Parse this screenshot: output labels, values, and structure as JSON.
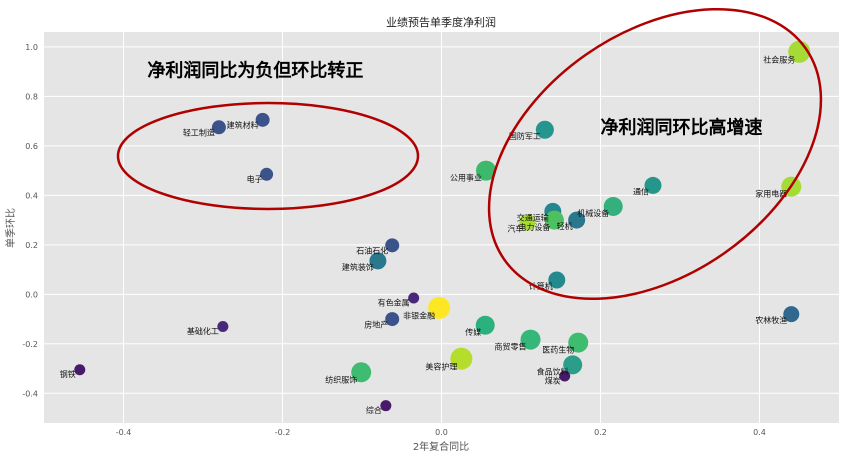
{
  "chart_data": {
    "type": "scatter",
    "title": "业绩预告单季度净利润",
    "xlabel": "2年复合同比",
    "ylabel": "单季环比",
    "xlim": [
      -0.5,
      0.5
    ],
    "ylim": [
      -0.52,
      1.06
    ],
    "xticks": [
      "-0.4",
      "-0.2",
      "0.0",
      "0.2",
      "0.4"
    ],
    "xtick_values": [
      -0.4,
      -0.2,
      0.0,
      0.2,
      0.4
    ],
    "yticks": [
      "-0.4",
      "-0.2",
      "0.0",
      "0.2",
      "0.4",
      "0.6",
      "0.8",
      "1.0"
    ],
    "ytick_values": [
      -0.4,
      -0.2,
      0.0,
      0.2,
      0.4,
      0.6,
      0.8,
      1.0
    ],
    "grid": true,
    "points": [
      {
        "label": "社会服务",
        "x": 0.45,
        "y": 0.98,
        "color": "#a6db35",
        "size": 11
      },
      {
        "label": "轻工制造",
        "x": -0.28,
        "y": 0.675,
        "color": "#3b528b",
        "size": 7
      },
      {
        "label": "建筑材料",
        "x": -0.225,
        "y": 0.705,
        "color": "#3b528b",
        "size": 7
      },
      {
        "label": "国防军工",
        "x": 0.13,
        "y": 0.665,
        "color": "#26958d",
        "size": 9
      },
      {
        "label": "电子",
        "x": -0.22,
        "y": 0.485,
        "color": "#3b528b",
        "size": 6.5
      },
      {
        "label": "公用事业",
        "x": 0.056,
        "y": 0.5,
        "color": "#3db96b",
        "size": 10
      },
      {
        "label": "通信",
        "x": 0.266,
        "y": 0.44,
        "color": "#25968b",
        "size": 8.5
      },
      {
        "label": "家用电器",
        "x": 0.44,
        "y": 0.435,
        "color": "#a4db36",
        "size": 10
      },
      {
        "label": "机械设备",
        "x": 0.216,
        "y": 0.355,
        "color": "#33b07b",
        "size": 9.5
      },
      {
        "label": "交通运输",
        "x": 0.14,
        "y": 0.335,
        "color": "#26868f",
        "size": 8.5
      },
      {
        "label": "电力设备",
        "x": 0.142,
        "y": 0.3,
        "color": "#4dc05f",
        "size": 9.5
      },
      {
        "label": "汽车",
        "x": 0.108,
        "y": 0.29,
        "color": "#a6db35",
        "size": 8
      },
      {
        "label": "轻机",
        "x": 0.17,
        "y": 0.3,
        "color": "#2a788e",
        "size": 8.5
      },
      {
        "label": "石油石化",
        "x": -0.062,
        "y": 0.198,
        "color": "#3b528b",
        "size": 7
      },
      {
        "label": "建筑装饰",
        "x": -0.08,
        "y": 0.135,
        "color": "#2a788e",
        "size": 8.5
      },
      {
        "label": "计算机",
        "x": 0.145,
        "y": 0.058,
        "color": "#238a8d",
        "size": 8.5
      },
      {
        "label": "有色金属",
        "x": -0.035,
        "y": -0.015,
        "color": "#482878",
        "size": 5.5
      },
      {
        "label": "非银金融",
        "x": -0.003,
        "y": -0.055,
        "color": "#fde725",
        "size": 11
      },
      {
        "label": "房地产",
        "x": -0.062,
        "y": -0.1,
        "color": "#3b528b",
        "size": 7
      },
      {
        "label": "基础化工",
        "x": -0.275,
        "y": -0.13,
        "color": "#482878",
        "size": 5.5
      },
      {
        "label": "传媒",
        "x": 0.055,
        "y": -0.125,
        "color": "#2bb17e",
        "size": 9.5
      },
      {
        "label": "商贸零售",
        "x": 0.112,
        "y": -0.183,
        "color": "#35b779",
        "size": 10
      },
      {
        "label": "医药生物",
        "x": 0.172,
        "y": -0.195,
        "color": "#3ebc6f",
        "size": 10
      },
      {
        "label": "美容护理",
        "x": 0.025,
        "y": -0.26,
        "color": "#b4dd2c",
        "size": 11
      },
      {
        "label": "食品饮料",
        "x": 0.165,
        "y": -0.285,
        "color": "#2a9e89",
        "size": 9.5
      },
      {
        "label": "煤炭",
        "x": 0.155,
        "y": -0.33,
        "color": "#481a6c",
        "size": 5.5
      },
      {
        "label": "纺织服饰",
        "x": -0.101,
        "y": -0.315,
        "color": "#3fbc72",
        "size": 10
      },
      {
        "label": "钢铁",
        "x": -0.455,
        "y": -0.305,
        "color": "#481a6c",
        "size": 5.5
      },
      {
        "label": "综合",
        "x": -0.07,
        "y": -0.45,
        "color": "#481a6c",
        "size": 5.5
      },
      {
        "label": "农林牧渔",
        "x": 0.44,
        "y": -0.08,
        "color": "#31688e",
        "size": 8
      }
    ],
    "annotations": [
      {
        "text": "净利润同比为负但环比转正",
        "x": -0.37,
        "y": 0.88
      },
      {
        "text": "净利润同环比高增速",
        "x": 0.2,
        "y": 0.65
      }
    ]
  }
}
